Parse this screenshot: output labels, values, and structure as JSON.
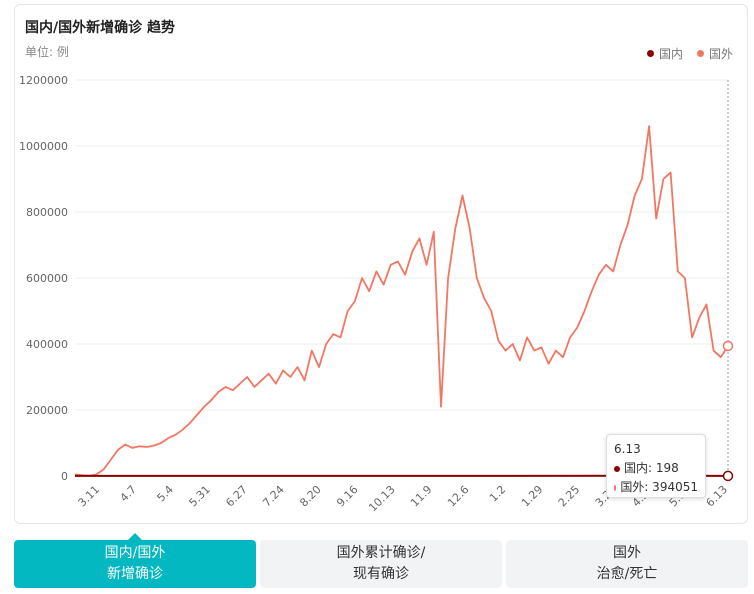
{
  "header": {
    "title": "国内/国外新增确诊 趋势",
    "unit": "单位: 例"
  },
  "legend": [
    {
      "name": "国内",
      "color": "#8b0000"
    },
    {
      "name": "国外",
      "color": "#f37663"
    }
  ],
  "tooltip": {
    "date": "6.13",
    "domestic_label": "国内: 198",
    "foreign_label": "国外: 394051"
  },
  "tabs": [
    {
      "line1": "国内/国外",
      "line2": "新增确诊",
      "active": true
    },
    {
      "line1": "国外累计确诊/",
      "line2": "现有确诊",
      "active": false
    },
    {
      "line1": "国外",
      "line2": "治愈/死亡",
      "active": false
    }
  ],
  "chart_data": {
    "type": "line",
    "ylim": [
      0,
      1200000
    ],
    "yticks": [
      "0",
      "200000",
      "400000",
      "600000",
      "800000",
      "1000000",
      "1200000"
    ],
    "xticks": [
      "3.11",
      "4.7",
      "5.4",
      "5.31",
      "6.27",
      "7.24",
      "8.20",
      "9.16",
      "10.13",
      "11.9",
      "12.6",
      "1.2",
      "1.29",
      "2.25",
      "3.24",
      "4.20",
      "5.17",
      "6.13"
    ],
    "x_is_index": true,
    "series": [
      {
        "name": "国外",
        "color": "#f37663",
        "points": [
          [
            0,
            5000
          ],
          [
            1,
            2000
          ],
          [
            2,
            1000
          ],
          [
            3,
            5000
          ],
          [
            4,
            20000
          ],
          [
            5,
            50000
          ],
          [
            6,
            80000
          ],
          [
            7,
            95000
          ],
          [
            8,
            85000
          ],
          [
            9,
            90000
          ],
          [
            10,
            88000
          ],
          [
            11,
            92000
          ],
          [
            12,
            100000
          ],
          [
            13,
            115000
          ],
          [
            14,
            125000
          ],
          [
            15,
            140000
          ],
          [
            16,
            160000
          ],
          [
            17,
            185000
          ],
          [
            18,
            210000
          ],
          [
            19,
            230000
          ],
          [
            20,
            255000
          ],
          [
            21,
            270000
          ],
          [
            22,
            260000
          ],
          [
            23,
            280000
          ],
          [
            24,
            300000
          ],
          [
            25,
            270000
          ],
          [
            26,
            290000
          ],
          [
            27,
            310000
          ],
          [
            28,
            280000
          ],
          [
            29,
            320000
          ],
          [
            30,
            300000
          ],
          [
            31,
            330000
          ],
          [
            32,
            290000
          ],
          [
            33,
            380000
          ],
          [
            34,
            330000
          ],
          [
            35,
            400000
          ],
          [
            36,
            430000
          ],
          [
            37,
            420000
          ],
          [
            38,
            500000
          ],
          [
            39,
            530000
          ],
          [
            40,
            600000
          ],
          [
            41,
            560000
          ],
          [
            42,
            620000
          ],
          [
            43,
            580000
          ],
          [
            44,
            640000
          ],
          [
            45,
            650000
          ],
          [
            46,
            610000
          ],
          [
            47,
            680000
          ],
          [
            48,
            720000
          ],
          [
            49,
            640000
          ],
          [
            50,
            740000
          ],
          [
            51,
            210000
          ],
          [
            52,
            600000
          ],
          [
            53,
            750000
          ],
          [
            54,
            850000
          ],
          [
            55,
            750000
          ],
          [
            56,
            600000
          ],
          [
            57,
            540000
          ],
          [
            58,
            500000
          ],
          [
            59,
            410000
          ],
          [
            60,
            380000
          ],
          [
            61,
            400000
          ],
          [
            62,
            350000
          ],
          [
            63,
            420000
          ],
          [
            64,
            380000
          ],
          [
            65,
            390000
          ],
          [
            66,
            340000
          ],
          [
            67,
            380000
          ],
          [
            68,
            360000
          ],
          [
            69,
            420000
          ],
          [
            70,
            450000
          ],
          [
            71,
            500000
          ],
          [
            72,
            560000
          ],
          [
            73,
            610000
          ],
          [
            74,
            640000
          ],
          [
            75,
            620000
          ],
          [
            76,
            700000
          ],
          [
            77,
            760000
          ],
          [
            78,
            850000
          ],
          [
            79,
            900000
          ],
          [
            80,
            1060000
          ],
          [
            81,
            780000
          ],
          [
            82,
            900000
          ],
          [
            83,
            920000
          ],
          [
            84,
            620000
          ],
          [
            85,
            600000
          ],
          [
            86,
            420000
          ],
          [
            87,
            480000
          ],
          [
            88,
            520000
          ],
          [
            89,
            380000
          ],
          [
            90,
            360000
          ],
          [
            91,
            394051
          ]
        ]
      },
      {
        "name": "国内",
        "color": "#8b0000",
        "points": [
          [
            0,
            300
          ],
          [
            20,
            200
          ],
          [
            40,
            250
          ],
          [
            60,
            400
          ],
          [
            80,
            500
          ],
          [
            91,
            198
          ]
        ]
      }
    ]
  }
}
